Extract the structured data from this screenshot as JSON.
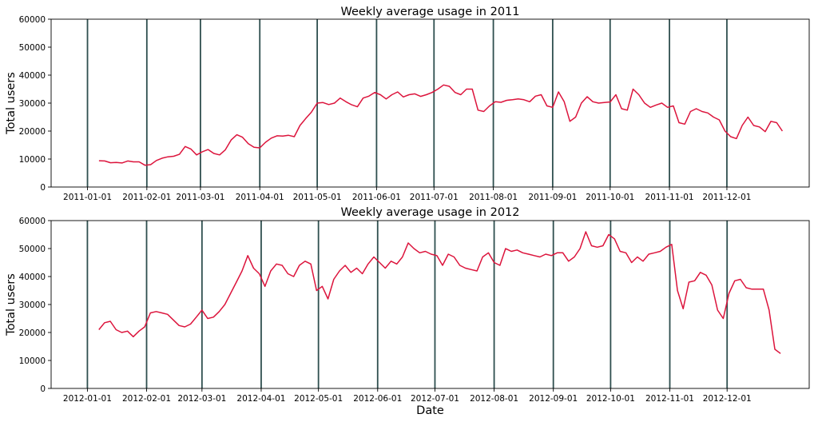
{
  "figure": {
    "xlabel": "Date",
    "line_color": "#dc143c",
    "vline_color": "#2f4f4f"
  },
  "chart_data": [
    {
      "type": "line",
      "title": "Weekly average usage in 2011",
      "xlabel": "",
      "ylabel": "Total users",
      "ylim": [
        0,
        60000
      ],
      "yticks": [
        0,
        10000,
        20000,
        30000,
        40000,
        50000,
        60000
      ],
      "xlim": [
        "2010-12-13",
        "2012-01-13"
      ],
      "xticks": [
        "2011-01-01",
        "2011-02-01",
        "2011-03-01",
        "2011-04-01",
        "2011-05-01",
        "2011-06-01",
        "2011-07-01",
        "2011-08-01",
        "2011-09-01",
        "2011-10-01",
        "2011-11-01",
        "2011-12-01"
      ],
      "vlines": [
        "2011-01-01",
        "2011-02-01",
        "2011-03-01",
        "2011-04-01",
        "2011-05-01",
        "2011-06-01",
        "2011-07-01",
        "2011-08-01",
        "2011-09-01",
        "2011-10-01",
        "2011-11-01",
        "2011-12-01"
      ],
      "grid": false,
      "series": [
        {
          "x": [
            "2011-01-07",
            "2011-01-10",
            "2011-01-13",
            "2011-01-16",
            "2011-01-19",
            "2011-01-22",
            "2011-01-25",
            "2011-01-28",
            "2011-01-31",
            "2011-02-03",
            "2011-02-06",
            "2011-02-09",
            "2011-02-12",
            "2011-02-15",
            "2011-02-18",
            "2011-02-21",
            "2011-02-24",
            "2011-02-27",
            "2011-03-02",
            "2011-03-05",
            "2011-03-08",
            "2011-03-11",
            "2011-03-14",
            "2011-03-17",
            "2011-03-20",
            "2011-03-23",
            "2011-03-26",
            "2011-03-29",
            "2011-04-01",
            "2011-04-04",
            "2011-04-07",
            "2011-04-10",
            "2011-04-13",
            "2011-04-16",
            "2011-04-19",
            "2011-04-22",
            "2011-04-25",
            "2011-04-28",
            "2011-05-01",
            "2011-05-04",
            "2011-05-07",
            "2011-05-10",
            "2011-05-13",
            "2011-05-16",
            "2011-05-19",
            "2011-05-22",
            "2011-05-25",
            "2011-05-28",
            "2011-05-31",
            "2011-06-03",
            "2011-06-06",
            "2011-06-09",
            "2011-06-12",
            "2011-06-15",
            "2011-06-18",
            "2011-06-21",
            "2011-06-24",
            "2011-06-27",
            "2011-06-30",
            "2011-07-03",
            "2011-07-06",
            "2011-07-09",
            "2011-07-12",
            "2011-07-15",
            "2011-07-18",
            "2011-07-21",
            "2011-07-24",
            "2011-07-27",
            "2011-07-30",
            "2011-08-02",
            "2011-08-05",
            "2011-08-08",
            "2011-08-11",
            "2011-08-14",
            "2011-08-17",
            "2011-08-20",
            "2011-08-23",
            "2011-08-26",
            "2011-08-29",
            "2011-09-01",
            "2011-09-04",
            "2011-09-07",
            "2011-09-10",
            "2011-09-13",
            "2011-09-16",
            "2011-09-19",
            "2011-09-22",
            "2011-09-25",
            "2011-09-28",
            "2011-10-01",
            "2011-10-04",
            "2011-10-07",
            "2011-10-10",
            "2011-10-13",
            "2011-10-16",
            "2011-10-19",
            "2011-10-22",
            "2011-10-25",
            "2011-10-28",
            "2011-10-31",
            "2011-11-03",
            "2011-11-06",
            "2011-11-09",
            "2011-11-12",
            "2011-11-15",
            "2011-11-18",
            "2011-11-21",
            "2011-11-24",
            "2011-11-27",
            "2011-11-30",
            "2011-12-03",
            "2011-12-06",
            "2011-12-09",
            "2011-12-12",
            "2011-12-15",
            "2011-12-18",
            "2011-12-21",
            "2011-12-24",
            "2011-12-27",
            "2011-12-30"
          ],
          "y": [
            9400,
            9300,
            8700,
            8800,
            8600,
            9300,
            9000,
            9000,
            7800,
            8000,
            9500,
            10300,
            10800,
            11000,
            11700,
            14500,
            13600,
            11500,
            12600,
            13400,
            12000,
            11500,
            13300,
            16800,
            18700,
            17800,
            15500,
            14200,
            14000,
            16000,
            17500,
            18300,
            18200,
            18500,
            18000,
            22000,
            24500,
            26800,
            30000,
            30200,
            29500,
            30000,
            31800,
            30500,
            29400,
            28700,
            31800,
            32500,
            33800,
            33000,
            31500,
            33000,
            34000,
            32200,
            33000,
            33300,
            32400,
            33000,
            33800,
            35000,
            36500,
            36000,
            33800,
            33000,
            35000,
            35000,
            27500,
            27000,
            29000,
            30500,
            30300,
            31000,
            31200,
            31500,
            31200,
            30500,
            32500,
            33000,
            29000,
            28500,
            34000,
            30500,
            23500,
            25000,
            30000,
            32300,
            30500,
            30000,
            30200,
            30400,
            33000,
            28000,
            27500,
            35000,
            33000,
            30000,
            28500,
            29300,
            30000,
            28500,
            29000,
            23000,
            22500,
            27000,
            28000,
            27000,
            26500,
            25000,
            24000,
            20000,
            18000,
            17300,
            22000,
            25000,
            22000,
            21500,
            19800,
            23500,
            23000,
            20000
          ]
        }
      ]
    },
    {
      "type": "line",
      "title": "Weekly average usage in 2012",
      "xlabel": "Date",
      "ylabel": "Total users",
      "ylim": [
        0,
        60000
      ],
      "yticks": [
        0,
        10000,
        20000,
        30000,
        40000,
        50000,
        60000
      ],
      "xlim": [
        "2011-12-13",
        "2013-01-13"
      ],
      "xticks": [
        "2012-01-01",
        "2012-02-01",
        "2012-03-01",
        "2012-04-01",
        "2012-05-01",
        "2012-06-01",
        "2012-07-01",
        "2012-08-01",
        "2012-09-01",
        "2012-10-01",
        "2012-11-01",
        "2012-12-01"
      ],
      "vlines": [
        "2012-01-01",
        "2012-02-01",
        "2012-03-01",
        "2012-04-01",
        "2012-05-01",
        "2012-06-01",
        "2012-07-01",
        "2012-08-01",
        "2012-09-01",
        "2012-10-01",
        "2012-11-01",
        "2012-12-01"
      ],
      "grid": false,
      "series": [
        {
          "x": [
            "2012-01-07",
            "2012-01-10",
            "2012-01-13",
            "2012-01-16",
            "2012-01-19",
            "2012-01-22",
            "2012-01-25",
            "2012-01-28",
            "2012-01-31",
            "2012-02-03",
            "2012-02-06",
            "2012-02-09",
            "2012-02-12",
            "2012-02-15",
            "2012-02-18",
            "2012-02-21",
            "2012-02-24",
            "2012-02-27",
            "2012-03-01",
            "2012-03-04",
            "2012-03-07",
            "2012-03-10",
            "2012-03-13",
            "2012-03-16",
            "2012-03-19",
            "2012-03-22",
            "2012-03-25",
            "2012-03-28",
            "2012-03-31",
            "2012-04-03",
            "2012-04-06",
            "2012-04-09",
            "2012-04-12",
            "2012-04-15",
            "2012-04-18",
            "2012-04-21",
            "2012-04-24",
            "2012-04-27",
            "2012-04-30",
            "2012-05-03",
            "2012-05-06",
            "2012-05-09",
            "2012-05-12",
            "2012-05-15",
            "2012-05-18",
            "2012-05-21",
            "2012-05-24",
            "2012-05-27",
            "2012-05-30",
            "2012-06-02",
            "2012-06-05",
            "2012-06-08",
            "2012-06-11",
            "2012-06-14",
            "2012-06-17",
            "2012-06-20",
            "2012-06-23",
            "2012-06-26",
            "2012-06-29",
            "2012-07-02",
            "2012-07-05",
            "2012-07-08",
            "2012-07-11",
            "2012-07-14",
            "2012-07-17",
            "2012-07-20",
            "2012-07-23",
            "2012-07-26",
            "2012-07-29",
            "2012-08-01",
            "2012-08-04",
            "2012-08-07",
            "2012-08-10",
            "2012-08-13",
            "2012-08-16",
            "2012-08-19",
            "2012-08-22",
            "2012-08-25",
            "2012-08-28",
            "2012-08-31",
            "2012-09-03",
            "2012-09-06",
            "2012-09-09",
            "2012-09-12",
            "2012-09-15",
            "2012-09-18",
            "2012-09-21",
            "2012-09-24",
            "2012-09-27",
            "2012-09-30",
            "2012-10-03",
            "2012-10-06",
            "2012-10-09",
            "2012-10-12",
            "2012-10-15",
            "2012-10-18",
            "2012-10-21",
            "2012-10-24",
            "2012-10-27",
            "2012-10-30",
            "2012-11-02",
            "2012-11-05",
            "2012-11-08",
            "2012-11-11",
            "2012-11-14",
            "2012-11-17",
            "2012-11-20",
            "2012-11-23",
            "2012-11-26",
            "2012-11-29",
            "2012-12-02",
            "2012-12-05",
            "2012-12-08",
            "2012-12-11",
            "2012-12-14",
            "2012-12-17",
            "2012-12-20",
            "2012-12-23",
            "2012-12-26",
            "2012-12-29"
          ],
          "y": [
            21000,
            23500,
            24000,
            21000,
            20000,
            20500,
            18500,
            20500,
            22000,
            27000,
            27500,
            27000,
            26500,
            24500,
            22500,
            22000,
            23000,
            25500,
            28000,
            25000,
            25500,
            27500,
            30000,
            34000,
            38000,
            42000,
            47500,
            43000,
            41000,
            36500,
            42000,
            44500,
            44000,
            41000,
            40000,
            44000,
            45500,
            44500,
            35000,
            36500,
            32000,
            39000,
            42000,
            44000,
            41500,
            43000,
            41000,
            44500,
            47000,
            45000,
            43000,
            45500,
            44500,
            47000,
            52000,
            50000,
            48500,
            49000,
            48000,
            47500,
            44000,
            48000,
            47000,
            44000,
            43000,
            42500,
            42000,
            47000,
            48500,
            45000,
            44000,
            50000,
            49000,
            49500,
            48500,
            48000,
            47500,
            47000,
            48000,
            47500,
            48500,
            48500,
            45500,
            47000,
            50000,
            56000,
            51000,
            50500,
            51000,
            55000,
            53500,
            49000,
            48500,
            45000,
            47000,
            45500,
            48000,
            48500,
            49000,
            50500,
            51500,
            35000,
            28500,
            38000,
            38500,
            41500,
            40500,
            37000,
            28000,
            25000,
            34000,
            38500,
            39000,
            36000,
            35500,
            35500,
            35500,
            28000,
            14000,
            12500
          ]
        }
      ]
    }
  ]
}
